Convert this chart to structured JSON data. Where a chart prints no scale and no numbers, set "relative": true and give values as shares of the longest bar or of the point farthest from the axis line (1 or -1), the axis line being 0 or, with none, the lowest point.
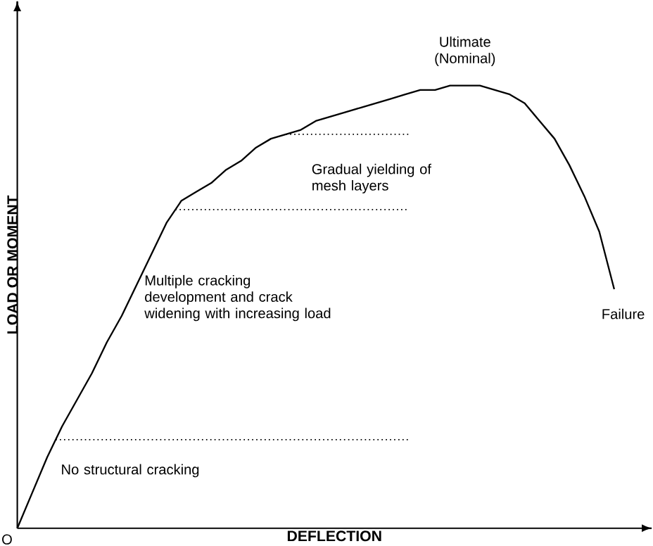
{
  "chart_data": {
    "type": "line",
    "relative": true,
    "xlabel": "DEFLECTION",
    "ylabel": "LOAD OR MOMENT",
    "categories": [
      null,
      null,
      null,
      null,
      null,
      null,
      null,
      null,
      null,
      null,
      null,
      null,
      null,
      null,
      null,
      null,
      null,
      null,
      null,
      null,
      null,
      null,
      null,
      null,
      null,
      null,
      null,
      null,
      null,
      null,
      null,
      null,
      null,
      null,
      null,
      null,
      null,
      null,
      null,
      null,
      null
    ],
    "series": [
      {
        "color": "#000000",
        "values": [
          0,
          0.08,
          0.16,
          0.23,
          0.29,
          0.35,
          0.42,
          0.48,
          0.55,
          0.62,
          0.69,
          0.74,
          0.76,
          0.78,
          0.81,
          0.83,
          0.86,
          0.88,
          0.89,
          0.9,
          0.92,
          0.93,
          0.94,
          0.95,
          0.96,
          0.97,
          0.98,
          0.99,
          0.99,
          1,
          1,
          1,
          0.99,
          0.98,
          0.96,
          0.92,
          0.88,
          0.82,
          0.75,
          0.67,
          0.54
        ]
      }
    ],
    "ref_lines": [
      {
        "axis": "y",
        "value": 0.2,
        "line_style": "dotted"
      },
      {
        "axis": "y",
        "value": 0.72,
        "line_style": "dotted"
      },
      {
        "axis": "y",
        "value": 0.89,
        "line_style": "dotted"
      }
    ],
    "annotations": [
      "Ultimate (Nominal)",
      "Gradual yielding of mesh layers",
      "Multiple cracking development and crack widening with increasing load",
      "No structural cracking",
      "Failure",
      "O"
    ],
    "line_style": "solid"
  }
}
